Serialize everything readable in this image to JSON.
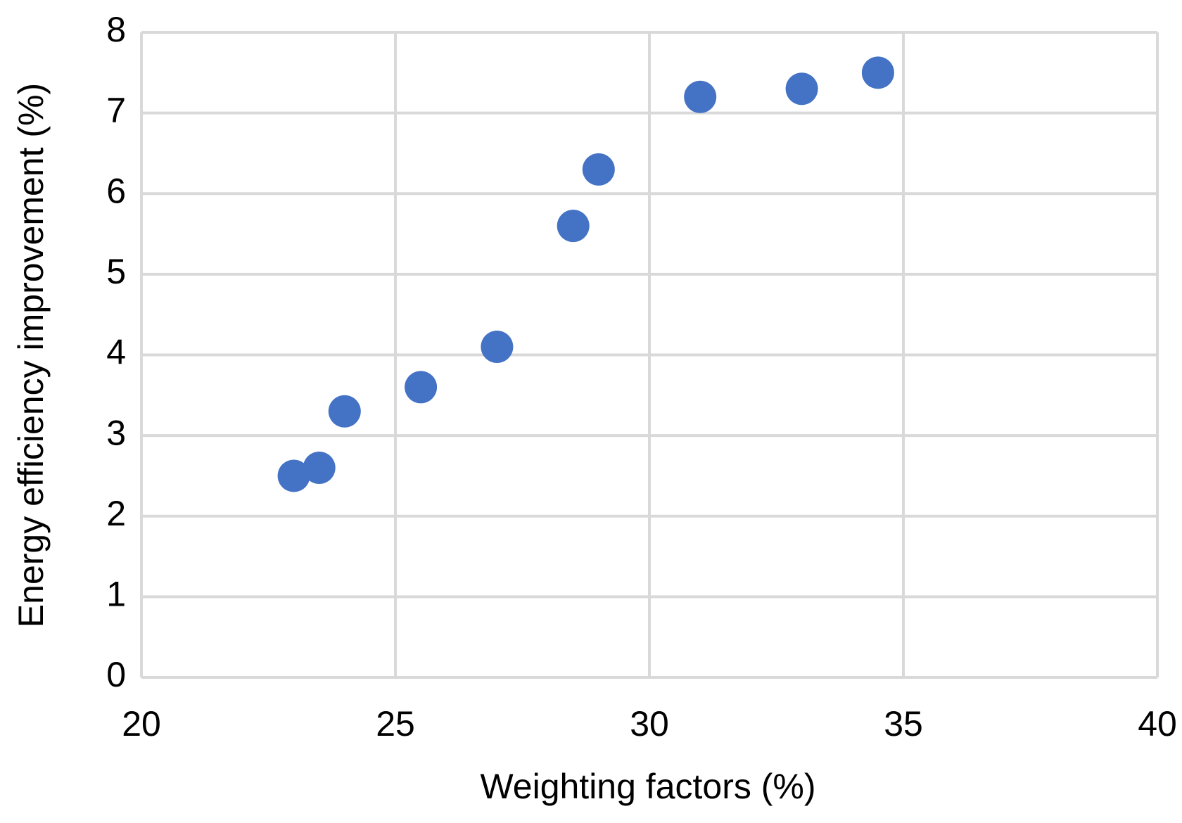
{
  "chart_data": {
    "type": "scatter",
    "xlabel": "Weighting factors (%)",
    "ylabel": "Energy efficiency improvement (%)",
    "x": [
      23,
      23.5,
      24,
      25.5,
      27,
      28.5,
      29,
      31,
      33,
      34.5
    ],
    "series": [
      {
        "color": "#4472c4",
        "values": [
          2.5,
          2.6,
          3.3,
          3.6,
          4.1,
          5.6,
          6.3,
          7.2,
          7.3,
          7.5
        ]
      }
    ],
    "xlim": [
      20,
      40
    ],
    "xticks": [
      20,
      25,
      30,
      35,
      40
    ],
    "ylim": [
      0,
      8
    ],
    "yticks": [
      0,
      1,
      2,
      3,
      4,
      5,
      6,
      7,
      8
    ],
    "grid": true
  }
}
